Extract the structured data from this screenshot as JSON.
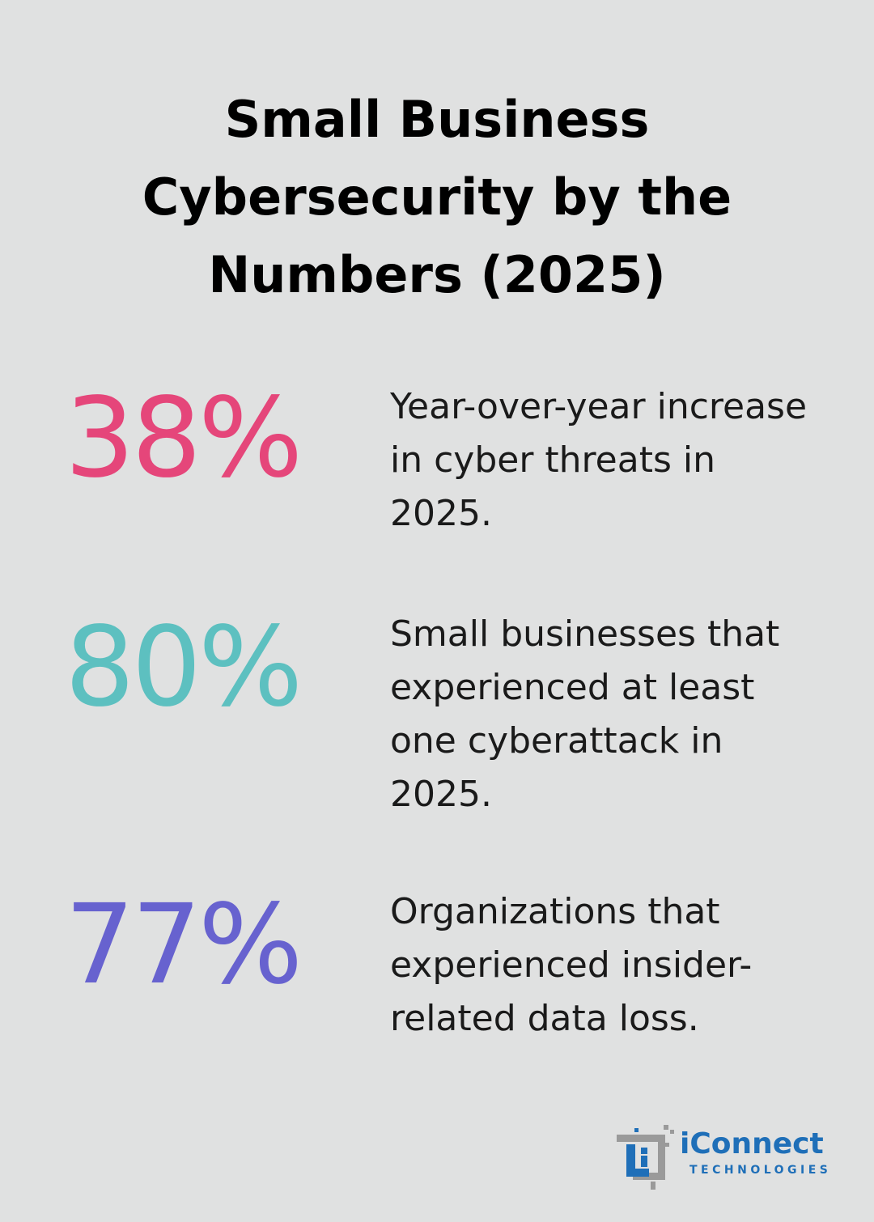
{
  "title": "Small Business Cybersecurity by the Numbers (2025)",
  "stats": [
    {
      "value": "38%",
      "description": "Year-over-year increase in cyber threats in 2025.",
      "color": "#e5467a"
    },
    {
      "value": "80%",
      "description": "Small businesses that experienced at least one cyberattack in 2025.",
      "color": "#5dc0c0"
    },
    {
      "value": "77%",
      "description": "Organizations that experienced insider-related data loss.",
      "color": "#6762cf"
    }
  ],
  "logo": {
    "name": "iConnect",
    "tagline": "TECHNOLOGIES",
    "mark_text": "Li",
    "brand_color": "#1f6fb8",
    "mark_gray": "#9a9a9a"
  }
}
